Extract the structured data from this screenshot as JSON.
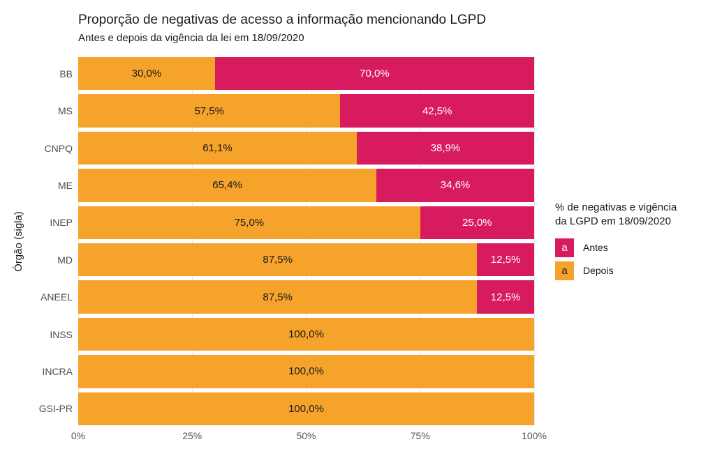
{
  "title": "Proporção de negativas de acesso a informação mencionando LGPD",
  "subtitle": "Antes e depois da vigência da lei em 18/09/2020",
  "y_axis_title": "Órgão (sigla)",
  "colors": {
    "antes": "#D81B5E",
    "depois": "#F5A32B",
    "label_on_depois": "#1A1A1A",
    "label_on_antes": "#FFFFFF",
    "axis_text": "#4D4D4D",
    "gridline": "#E7E7E7"
  },
  "legend": {
    "title": "% de negativas e vigência\nda LGPD em 18/09/2020",
    "key_glyph": "a",
    "items": [
      {
        "label": "Antes",
        "color": "#D81B5E",
        "glyph_color": "#FFFFFF"
      },
      {
        "label": "Depois",
        "color": "#F5A32B",
        "glyph_color": "#1A1A1A"
      }
    ]
  },
  "chart_data": {
    "type": "bar",
    "orientation": "horizontal",
    "stacked": true,
    "title": "Proporção de negativas de acesso a informação mencionando LGPD",
    "subtitle": "Antes e depois da vigência da lei em 18/09/2020",
    "ylabel": "Órgão (sigla)",
    "xlim": [
      0,
      100
    ],
    "x_ticks": [
      "0%",
      "25%",
      "50%",
      "75%",
      "100%"
    ],
    "x_gridlines_pct": [
      0,
      25,
      50,
      75,
      100
    ],
    "legend_position": "right",
    "categories": [
      "BB",
      "MS",
      "CNPQ",
      "ME",
      "INEP",
      "MD",
      "ANEEL",
      "INSS",
      "INCRA",
      "GSI-PR"
    ],
    "series": [
      {
        "name": "Depois",
        "color": "#F5A32B",
        "text_color": "#1A1A1A",
        "values": [
          30.0,
          57.5,
          61.1,
          65.4,
          75.0,
          87.5,
          87.5,
          100.0,
          100.0,
          100.0
        ],
        "labels": [
          "30,0%",
          "57,5%",
          "61,1%",
          "65,4%",
          "75,0%",
          "87,5%",
          "87,5%",
          "100,0%",
          "100,0%",
          "100,0%"
        ]
      },
      {
        "name": "Antes",
        "color": "#D81B5E",
        "text_color": "#FFFFFF",
        "values": [
          70.0,
          42.5,
          38.9,
          34.6,
          25.0,
          12.5,
          12.5,
          0.0,
          0.0,
          0.0
        ],
        "labels": [
          "70,0%",
          "42,5%",
          "38,9%",
          "34,6%",
          "25,0%",
          "12,5%",
          "12,5%",
          "",
          "",
          ""
        ]
      }
    ]
  }
}
